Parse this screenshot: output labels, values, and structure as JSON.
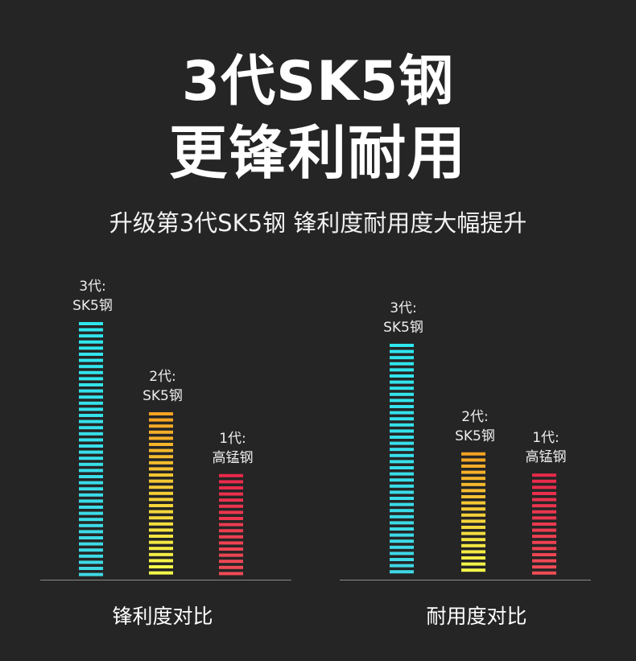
{
  "header": {
    "title_line1": "3代SK5钢",
    "title_line2": "更锋利耐用",
    "subtitle": "升级第3代SK5钢  锋利度耐用度大幅提升"
  },
  "chart_data": [
    {
      "type": "bar",
      "title": "锋利度对比",
      "categories": [
        "3代:\nSK5钢",
        "2代:\nSK5钢",
        "1代:\n高锰钢"
      ],
      "values": [
        100,
        65,
        41
      ],
      "ylim": [
        0,
        100
      ],
      "grid": false,
      "colors": [
        [
          "#2fe6ee",
          "#3fd8e6"
        ],
        [
          "#f5a323",
          "#f4f84a"
        ],
        [
          "#e8294a",
          "#f04c56"
        ]
      ]
    },
    {
      "type": "bar",
      "title": "耐用度对比",
      "categories": [
        "3代:\nSK5钢",
        "2代:\nSK5钢",
        "1代:\n高锰钢"
      ],
      "values": [
        100,
        54,
        45
      ],
      "ylim": [
        0,
        100
      ],
      "grid": false,
      "colors": [
        [
          "#2fe6ee",
          "#3fd8e6"
        ],
        [
          "#f5a323",
          "#f4f84a"
        ],
        [
          "#e8294a",
          "#f04c56"
        ]
      ]
    }
  ]
}
